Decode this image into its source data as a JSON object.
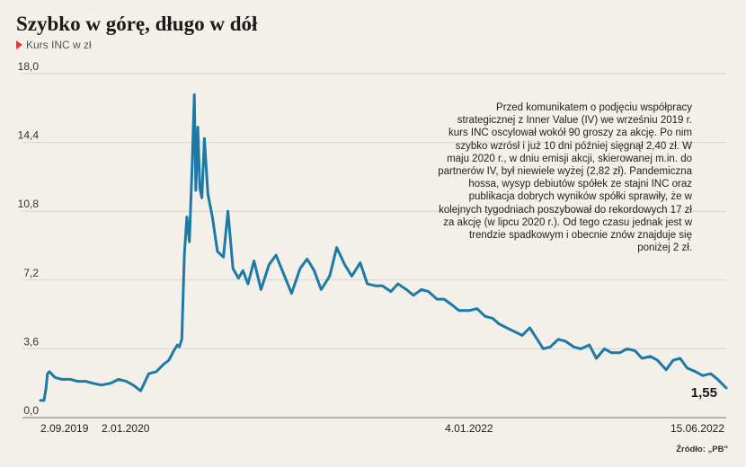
{
  "title": "Szybko w górę, długo w dół",
  "legend_label": "Kurs INC w zł",
  "annotation": "Przed komunikatem o podjęciu współpracy strategicznej z Inner Value (IV) we wrześniu 2019 r. kurs INC oscylował wokół 90 groszy za akcję. Po nim szybko wzrósł i już 10 dni później sięgnął 2,40 zł. W maju 2020 r., w dniu emisji akcji, skierowanej m.in. do partnerów IV, był niewiele wyżej (2,82 zł). Pandemiczna hossa, wysyp debiutów spółek ze stajni INC oraz publikacja dobrych wyników spółki sprawiły, że w kolejnych tygodniach poszybował do rekordowych 17 zł za akcję (w lipcu 2020 r.). Od tego czasu jednak jest w trendzie spadkowym i obecnie znów znajduje się poniżej 2 zł.",
  "source": "Źródło: „PB\"",
  "colors": {
    "line": "#1b7aa6",
    "accent": "#e03a2f",
    "background": "#f3efe9",
    "grid": "#d9d4cc"
  },
  "chart_data": {
    "type": "line",
    "title": "Szybko w górę, długo w dół",
    "xlabel": "",
    "ylabel": "",
    "ylim": [
      0,
      18
    ],
    "y_ticks": [
      "0,0",
      "3,6",
      "7,2",
      "10,8",
      "14,4",
      "18,0"
    ],
    "y_tick_values": [
      0,
      3.6,
      7.2,
      10.8,
      14.4,
      18.0
    ],
    "x_tick_labels": [
      "2.09.2019",
      "2.01.2020",
      "4.01.2022",
      "15.06.2022"
    ],
    "grid": true,
    "last_value_label": "1,55",
    "series": [
      {
        "name": "Kurs INC w zł",
        "x": [
          "2019-09-02",
          "2019-09-09",
          "2019-09-13",
          "2019-09-16",
          "2019-09-20",
          "2019-10-01",
          "2019-10-15",
          "2019-11-01",
          "2019-11-15",
          "2019-12-01",
          "2019-12-15",
          "2020-01-02",
          "2020-01-20",
          "2020-02-05",
          "2020-02-20",
          "2020-03-05",
          "2020-03-20",
          "2020-04-05",
          "2020-04-20",
          "2020-05-05",
          "2020-05-15",
          "2020-05-25",
          "2020-06-01",
          "2020-06-05",
          "2020-06-10",
          "2020-06-15",
          "2020-06-20",
          "2020-06-25",
          "2020-07-01",
          "2020-07-05",
          "2020-07-08",
          "2020-07-12",
          "2020-07-16",
          "2020-07-20",
          "2020-07-25",
          "2020-08-01",
          "2020-08-10",
          "2020-08-20",
          "2020-09-01",
          "2020-09-10",
          "2020-09-20",
          "2020-10-01",
          "2020-10-10",
          "2020-10-20",
          "2020-11-01",
          "2020-11-15",
          "2020-12-01",
          "2020-12-15",
          "2021-01-01",
          "2021-01-15",
          "2021-02-01",
          "2021-02-15",
          "2021-03-01",
          "2021-03-15",
          "2021-04-01",
          "2021-04-15",
          "2021-05-01",
          "2021-05-15",
          "2021-06-01",
          "2021-06-15",
          "2021-07-01",
          "2021-07-15",
          "2021-08-01",
          "2021-08-15",
          "2021-09-01",
          "2021-09-15",
          "2021-10-01",
          "2021-10-15",
          "2021-11-01",
          "2021-11-15",
          "2021-12-01",
          "2021-12-15",
          "2022-01-04",
          "2022-01-20",
          "2022-02-05",
          "2022-02-20",
          "2022-03-05",
          "2022-03-20",
          "2022-04-05",
          "2022-04-20",
          "2022-05-05",
          "2022-05-20",
          "2022-06-01",
          "2022-06-15",
          "2022-07-01",
          "2022-07-15",
          "2022-08-01",
          "2022-08-15",
          "2022-09-01",
          "2022-09-15",
          "2022-10-01",
          "2022-10-15",
          "2022-11-01",
          "2022-11-15",
          "2022-12-01",
          "2022-12-15",
          "2023-01-01",
          "2023-01-15",
          "2023-02-01",
          "2023-02-15",
          "2023-03-01",
          "2023-03-15",
          "2023-04-01",
          "2023-04-15",
          "2023-05-01",
          "2023-05-15",
          "2023-06-01"
        ],
        "y": [
          0.9,
          0.9,
          1.5,
          2.3,
          2.4,
          2.1,
          2.0,
          2.0,
          1.9,
          1.9,
          1.8,
          1.7,
          1.8,
          2.0,
          1.9,
          1.7,
          1.4,
          2.3,
          2.4,
          2.8,
          3.0,
          3.5,
          3.8,
          3.7,
          4.1,
          8.5,
          10.5,
          9.2,
          13.5,
          16.9,
          11.9,
          15.2,
          12.0,
          11.5,
          14.6,
          11.7,
          10.5,
          8.7,
          8.4,
          10.8,
          7.8,
          7.3,
          7.7,
          7.0,
          8.2,
          6.7,
          8.0,
          8.5,
          7.4,
          6.5,
          7.8,
          8.3,
          7.7,
          6.7,
          7.4,
          8.9,
          8.0,
          7.4,
          8.1,
          7.0,
          6.9,
          6.9,
          6.6,
          7.0,
          6.7,
          6.4,
          6.7,
          6.6,
          6.2,
          6.2,
          5.9,
          5.6,
          5.6,
          5.7,
          5.3,
          5.2,
          4.9,
          4.7,
          4.5,
          4.3,
          4.7,
          4.1,
          3.6,
          3.7,
          4.1,
          4.0,
          3.7,
          3.6,
          3.8,
          3.1,
          3.6,
          3.4,
          3.4,
          3.6,
          3.5,
          3.1,
          3.2,
          3.0,
          2.5,
          3.0,
          3.1,
          2.6,
          2.4,
          2.2,
          2.3,
          2.0,
          1.55
        ]
      }
    ]
  }
}
